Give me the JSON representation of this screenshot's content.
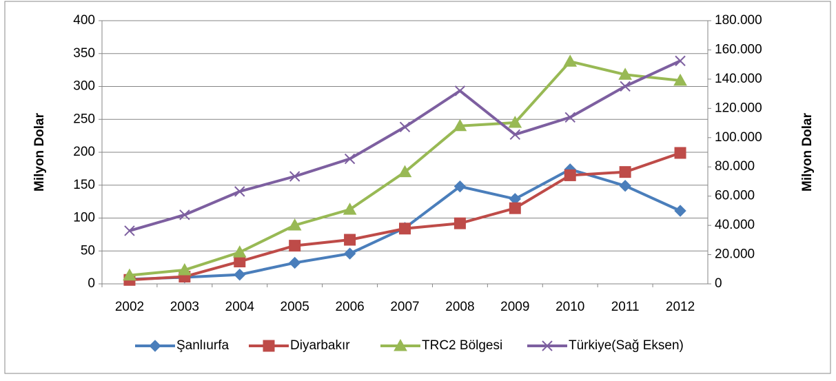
{
  "chart_data": {
    "type": "line",
    "categories": [
      "2002",
      "2003",
      "2004",
      "2005",
      "2006",
      "2007",
      "2008",
      "2009",
      "2010",
      "2011",
      "2012"
    ],
    "ylabel": "Milyon Dolar",
    "y2label": "Milyon Dolar",
    "ylim": [
      0,
      400
    ],
    "yticks": [
      0,
      50,
      100,
      150,
      200,
      250,
      300,
      350,
      400
    ],
    "y2lim": [
      0,
      180000
    ],
    "y2ticks": [
      0,
      {
        "value": 20000,
        "label": "20.000"
      },
      {
        "value": 40000,
        "label": "40.000"
      },
      {
        "value": 60000,
        "label": "60.000"
      },
      {
        "value": 80000,
        "label": "80.000"
      },
      {
        "value": 100000,
        "label": "100.000"
      },
      {
        "value": 120000,
        "label": "120.000"
      },
      {
        "value": 140000,
        "label": "140.000"
      },
      {
        "value": 160000,
        "label": "160.000"
      },
      {
        "value": 180000,
        "label": "180.000"
      }
    ],
    "grid": true,
    "legend": "bottom",
    "series": [
      {
        "name": "Şanlıurfa",
        "color": "#4a7ebb",
        "marker": "diamond",
        "values": [
          7,
          10,
          14,
          32,
          46,
          85,
          148,
          129,
          174,
          149,
          111
        ]
      },
      {
        "name": "Diyarbakır",
        "color": "#be4b48",
        "marker": "square",
        "values": [
          6,
          11,
          34,
          58,
          67,
          84,
          92,
          115,
          165,
          170,
          199
        ]
      },
      {
        "name": "TRC2 Bölgesi",
        "color": "#98b954",
        "marker": "triangle",
        "values": [
          13,
          21,
          48,
          89,
          113,
          170,
          240,
          245,
          338,
          318,
          309
        ]
      },
      {
        "name": "Türkiye(Sağ Eksen)",
        "color": "#7d5fa0",
        "marker": "x",
        "axis": "y2",
        "values": [
          36300,
          47200,
          63200,
          73500,
          85500,
          107300,
          132000,
          102100,
          113900,
          135100,
          152500
        ]
      }
    ]
  }
}
